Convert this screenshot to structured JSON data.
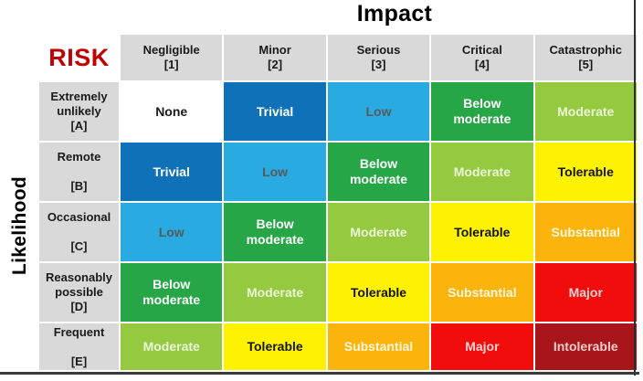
{
  "header": {
    "impact_title": "Impact",
    "risk_label": "RISK",
    "likelihood_label": "Likelihood"
  },
  "impact_levels": [
    {
      "label": "Negligible",
      "code": "[1]"
    },
    {
      "label": "Minor",
      "code": "[2]"
    },
    {
      "label": "Serious",
      "code": "[3]"
    },
    {
      "label": "Critical",
      "code": "[4]"
    },
    {
      "label": "Catastrophic",
      "code": "[5]"
    }
  ],
  "likelihood_levels": [
    {
      "label": "Extremely unlikely",
      "code": "[A]"
    },
    {
      "label": "Remote",
      "code": "[B]"
    },
    {
      "label": "Occasional",
      "code": "[C]"
    },
    {
      "label": "Reasonably possible",
      "code": "[D]"
    },
    {
      "label": "Frequent",
      "code": "[E]"
    }
  ],
  "risk_level_colors": {
    "None": {
      "bg": "#FFFFFF",
      "text": "#1A1A1A"
    },
    "Trivial": {
      "bg": "#0F72B9",
      "text": "#FFFFFF"
    },
    "Low": {
      "bg": "#29ABE2",
      "text": "#58595B"
    },
    "Below moderate": {
      "bg": "#26A646",
      "text": "#FFFFFF"
    },
    "Moderate": {
      "bg": "#95C93F",
      "text": "#EAF6D8"
    },
    "Tolerable": {
      "bg": "#FFF200",
      "text": "#141414"
    },
    "Substantial": {
      "bg": "#FBB40B",
      "text": "#FFF6E0"
    },
    "Major": {
      "bg": "#F20D0D",
      "text": "#FAD2D2"
    },
    "Intolerable": {
      "bg": "#A8161B",
      "text": "#F2CFC9"
    }
  },
  "chart_data": {
    "type": "heatmap",
    "title": "Impact",
    "xlabel": "Impact",
    "ylabel": "Likelihood",
    "x_categories": [
      "Negligible [1]",
      "Minor [2]",
      "Serious [3]",
      "Critical [4]",
      "Catastrophic [5]"
    ],
    "y_categories": [
      "Extremely unlikely [A]",
      "Remote [B]",
      "Occasional [C]",
      "Reasonably possible [D]",
      "Frequent [E]"
    ],
    "values": [
      [
        "None",
        "Trivial",
        "Low",
        "Below moderate",
        "Moderate"
      ],
      [
        "Trivial",
        "Low",
        "Below moderate",
        "Moderate",
        "Tolerable"
      ],
      [
        "Low",
        "Below moderate",
        "Moderate",
        "Tolerable",
        "Substantial"
      ],
      [
        "Below moderate",
        "Moderate",
        "Tolerable",
        "Substantial",
        "Major"
      ],
      [
        "Moderate",
        "Tolerable",
        "Substantial",
        "Major",
        "Intolerable"
      ]
    ],
    "legend": "none"
  }
}
